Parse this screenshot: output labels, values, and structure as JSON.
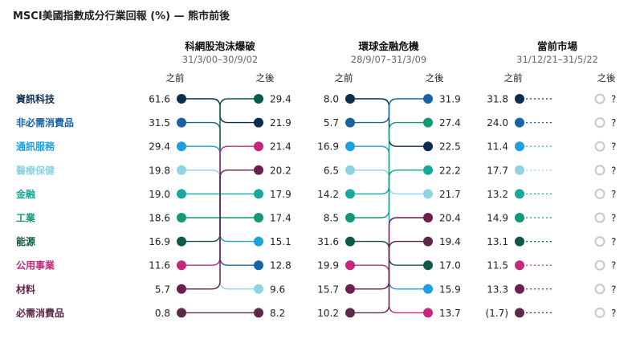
{
  "title": "MSCI美國指數成分行業回報 (%) — 熊市前後",
  "chart_data": {
    "type": "slope",
    "title": "MSCI美國指數成分行業回報 (%) — 熊市前後",
    "side_labels": {
      "before": "之前",
      "after": "之後"
    },
    "sectors": [
      {
        "name": "資訊科技",
        "color": "#0b2d4e"
      },
      {
        "name": "非必需消費品",
        "color": "#1863a6"
      },
      {
        "name": "通訊服務",
        "color": "#1ea0e0"
      },
      {
        "name": "醫療保健",
        "color": "#8fd3e5"
      },
      {
        "name": "金融",
        "color": "#14a99a"
      },
      {
        "name": "工業",
        "color": "#129a78"
      },
      {
        "name": "能源",
        "color": "#0e5a48"
      },
      {
        "name": "公用事業",
        "color": "#c3287a"
      },
      {
        "name": "材料",
        "color": "#6a1f4e"
      },
      {
        "name": "必需消費品",
        "color": "#5a2a46"
      }
    ],
    "panels": [
      {
        "title": "科網股泡沫爆破",
        "period": "31/3/00–30/9/02",
        "before": [
          61.6,
          31.5,
          29.4,
          19.8,
          19.0,
          18.6,
          16.9,
          11.6,
          5.7,
          0.8
        ],
        "after": [
          21.9,
          12.8,
          15.1,
          9.6,
          17.9,
          17.4,
          29.4,
          21.4,
          20.2,
          8.2
        ]
      },
      {
        "title": "環球金融危機",
        "period": "28/9/07–31/3/09",
        "before": [
          8.0,
          5.7,
          16.9,
          6.5,
          14.2,
          8.5,
          31.6,
          19.9,
          15.7,
          10.2
        ],
        "after": [
          22.5,
          31.9,
          15.9,
          21.7,
          22.2,
          27.4,
          17.0,
          13.7,
          20.4,
          19.4
        ]
      },
      {
        "title": "當前市場",
        "period": "31/12/21–31/5/22",
        "before": [
          31.8,
          24.0,
          11.4,
          17.7,
          13.2,
          14.9,
          13.1,
          11.5,
          13.3,
          "(1.7)"
        ],
        "after_text": "?"
      }
    ]
  }
}
